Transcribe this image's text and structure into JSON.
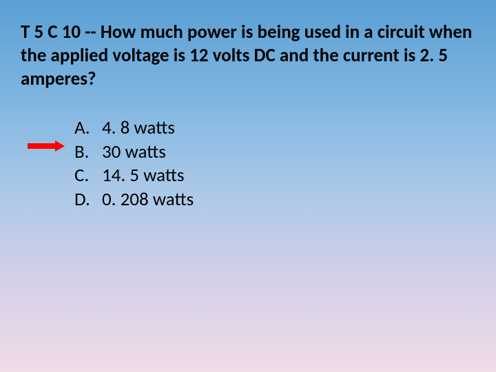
{
  "slide": {
    "background_gradient": [
      "#5a9fd4",
      "#7db4e0",
      "#a8c8e8",
      "#d4d0e8",
      "#f0dce8"
    ],
    "question_text": "T 5 C 10 -- How much power is being used in a circuit when the applied voltage is 12 volts DC and the current is 2. 5 amperes?",
    "question_fontsize": 27,
    "question_fontweight": "bold",
    "question_color": "#000000",
    "options": [
      {
        "letter": "A.",
        "text": "4. 8 watts"
      },
      {
        "letter": "B.",
        "text": "30 watts"
      },
      {
        "letter": "C.",
        "text": "14. 5 watts"
      },
      {
        "letter": "D.",
        "text": "0. 208 watts"
      }
    ],
    "option_fontsize": 27,
    "option_color": "#000000",
    "arrow": {
      "color": "#ff0000",
      "points_to_index": 1,
      "shaft_width": 42,
      "shaft_height": 8,
      "head_size": 14
    }
  }
}
